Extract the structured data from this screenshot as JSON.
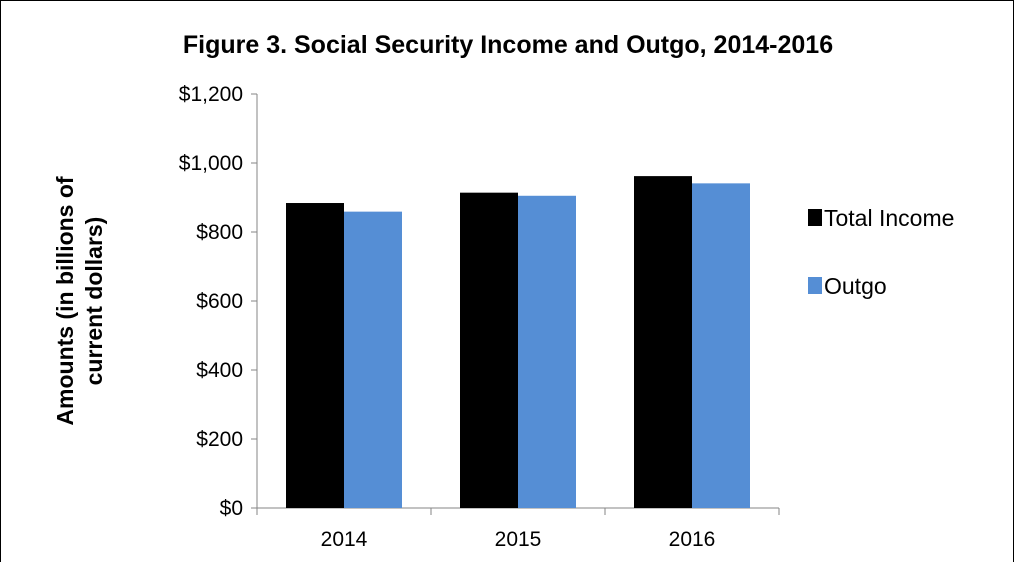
{
  "chart_data": {
    "type": "bar",
    "title": "Figure 3. Social Security Income and Outgo, 2014-2016",
    "ylabel_lines": [
      "Amounts (in billions of",
      "current dollars)"
    ],
    "xlabel": "",
    "categories": [
      "2014",
      "2015",
      "2016"
    ],
    "series": [
      {
        "name": "Total Income",
        "values": [
          884,
          914,
          962
        ],
        "color": "#000000"
      },
      {
        "name": "Outgo",
        "values": [
          859,
          905,
          941
        ],
        "color": "#558ED5"
      }
    ],
    "ylim": [
      0,
      1200
    ],
    "yticks": [
      0,
      200,
      400,
      600,
      800,
      1000,
      1200
    ],
    "ytick_labels": [
      "$0",
      "$200",
      "$400",
      "$600",
      "$800",
      "$1,000",
      "$1,200"
    ],
    "grid": false,
    "legend_position": "right"
  }
}
